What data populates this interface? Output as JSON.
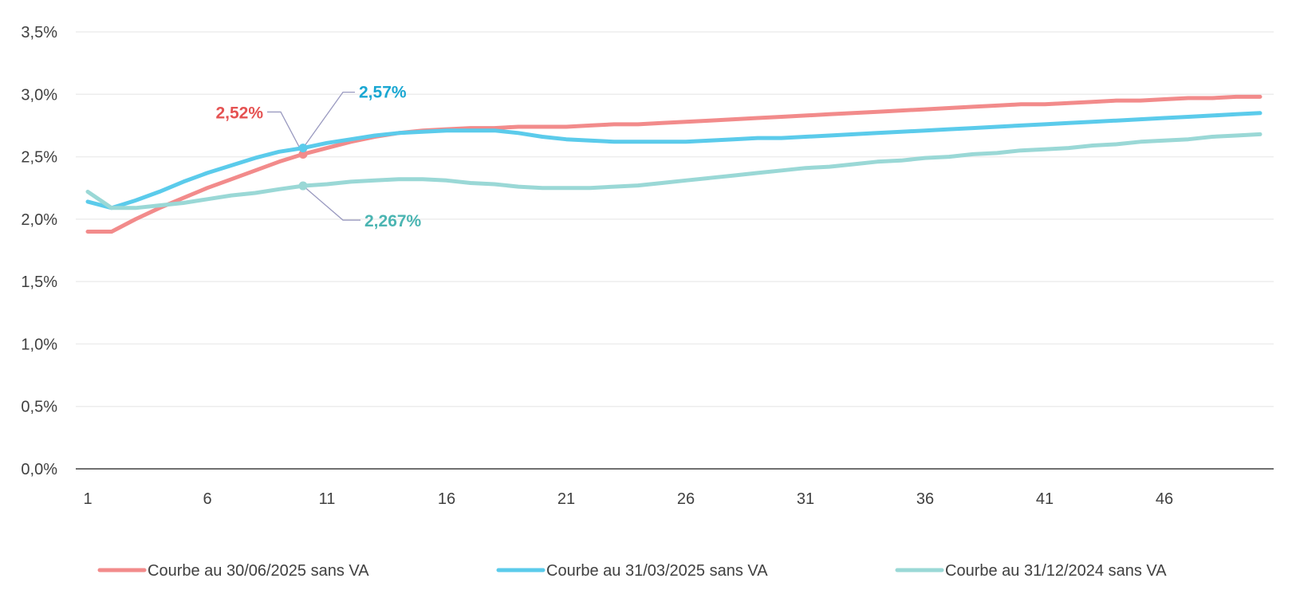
{
  "chart_data": {
    "type": "line",
    "title": "",
    "xlabel": "",
    "ylabel": "",
    "x": [
      1,
      2,
      3,
      4,
      5,
      6,
      7,
      8,
      9,
      10,
      11,
      12,
      13,
      14,
      15,
      16,
      17,
      18,
      19,
      20,
      21,
      22,
      23,
      24,
      25,
      26,
      27,
      28,
      29,
      30,
      31,
      32,
      33,
      34,
      35,
      36,
      37,
      38,
      39,
      40,
      41,
      42,
      43,
      44,
      45,
      46,
      47,
      48,
      49,
      50
    ],
    "xticks": [
      1,
      6,
      11,
      16,
      21,
      26,
      31,
      36,
      41,
      46
    ],
    "xtick_labels": [
      "1",
      "6",
      "11",
      "16",
      "21",
      "26",
      "31",
      "36",
      "41",
      "46"
    ],
    "ylim": [
      0,
      3.5
    ],
    "yticks": [
      0,
      0.5,
      1.0,
      1.5,
      2.0,
      2.5,
      3.0,
      3.5
    ],
    "ytick_labels": [
      "0,0%",
      "0,5%",
      "1,0%",
      "1,5%",
      "2,0%",
      "2,5%",
      "3,0%",
      "3,5%"
    ],
    "grid": true,
    "legend_position": "bottom",
    "series": [
      {
        "name": "Courbe au 30/06/2025 sans VA",
        "color": "#F28B8B",
        "values": [
          1.9,
          1.9,
          2.0,
          2.09,
          2.17,
          2.25,
          2.32,
          2.39,
          2.46,
          2.52,
          2.57,
          2.62,
          2.66,
          2.69,
          2.71,
          2.72,
          2.73,
          2.73,
          2.74,
          2.74,
          2.74,
          2.75,
          2.76,
          2.76,
          2.77,
          2.78,
          2.79,
          2.8,
          2.81,
          2.82,
          2.83,
          2.84,
          2.85,
          2.86,
          2.87,
          2.88,
          2.89,
          2.9,
          2.91,
          2.92,
          2.92,
          2.93,
          2.94,
          2.95,
          2.95,
          2.96,
          2.97,
          2.97,
          2.98,
          2.98
        ]
      },
      {
        "name": "Courbe au 31/03/2025 sans VA",
        "color": "#5BCBEB",
        "values": [
          2.14,
          2.09,
          2.15,
          2.22,
          2.3,
          2.37,
          2.43,
          2.49,
          2.54,
          2.57,
          2.61,
          2.64,
          2.67,
          2.69,
          2.7,
          2.71,
          2.71,
          2.71,
          2.69,
          2.66,
          2.64,
          2.63,
          2.62,
          2.62,
          2.62,
          2.62,
          2.63,
          2.64,
          2.65,
          2.65,
          2.66,
          2.67,
          2.68,
          2.69,
          2.7,
          2.71,
          2.72,
          2.73,
          2.74,
          2.75,
          2.76,
          2.77,
          2.78,
          2.79,
          2.8,
          2.81,
          2.82,
          2.83,
          2.84,
          2.85
        ]
      },
      {
        "name": "Courbe au 31/12/2024 sans VA",
        "color": "#9AD8D6",
        "values": [
          2.22,
          2.09,
          2.09,
          2.11,
          2.13,
          2.16,
          2.19,
          2.21,
          2.24,
          2.267,
          2.28,
          2.3,
          2.31,
          2.32,
          2.32,
          2.31,
          2.29,
          2.28,
          2.26,
          2.25,
          2.25,
          2.25,
          2.26,
          2.27,
          2.29,
          2.31,
          2.33,
          2.35,
          2.37,
          2.39,
          2.41,
          2.42,
          2.44,
          2.46,
          2.47,
          2.49,
          2.5,
          2.52,
          2.53,
          2.55,
          2.56,
          2.57,
          2.59,
          2.6,
          2.62,
          2.63,
          2.64,
          2.66,
          2.67,
          2.68
        ]
      }
    ],
    "annotations": [
      {
        "series_index": 0,
        "x": 10,
        "y": 2.52,
        "label": "2,52%",
        "color": "#E55353",
        "side": "left"
      },
      {
        "series_index": 1,
        "x": 10,
        "y": 2.57,
        "label": "2,57%",
        "color": "#1AA7D2",
        "side": "right-up"
      },
      {
        "series_index": 2,
        "x": 10,
        "y": 2.267,
        "label": "2,267%",
        "color": "#4BB5B2",
        "side": "right-down"
      }
    ]
  },
  "colors": {
    "gridline": "#EDEDED",
    "axis_line": "#404040",
    "leader_line": "#9A9AC0",
    "tick_text": "#404040"
  }
}
